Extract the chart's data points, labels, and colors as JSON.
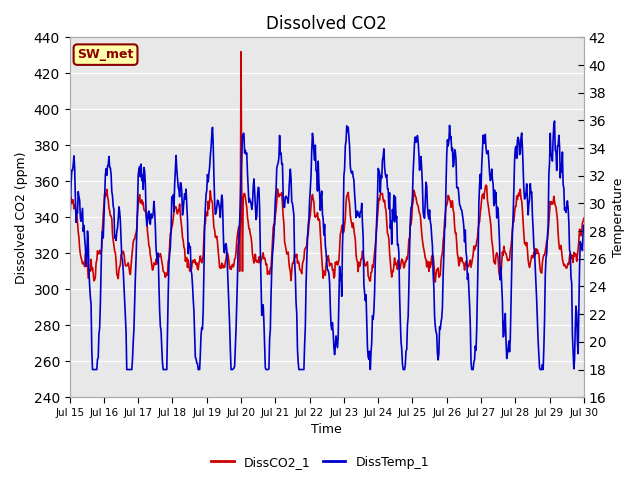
{
  "title": "Dissolved CO2",
  "xlabel": "Time",
  "ylabel_left": "Dissolved CO2 (ppm)",
  "ylabel_right": "Temperature",
  "ylim_left": [
    240,
    440
  ],
  "ylim_right": [
    16,
    42
  ],
  "yticks_left": [
    240,
    260,
    280,
    300,
    320,
    340,
    360,
    380,
    400,
    420,
    440
  ],
  "yticks_right": [
    16,
    18,
    20,
    22,
    24,
    26,
    28,
    30,
    32,
    34,
    36,
    38,
    40,
    42
  ],
  "xtick_labels": [
    "Jul 15",
    "Jul 16",
    "Jul 17",
    "Jul 18",
    "Jul 19",
    "Jul 20",
    "Jul 21",
    "Jul 22",
    "Jul 23",
    "Jul 24",
    "Jul 25",
    "Jul 26",
    "Jul 27",
    "Jul 28",
    "Jul 29",
    "Jul 30"
  ],
  "annotation_text": "SW_met",
  "annotation_bg": "#ffffaa",
  "annotation_border": "#8b0000",
  "co2_color": "#cc0000",
  "temp_color": "#0000cc",
  "bg_color": "#e8e8e8",
  "fig_bg": "#ffffff",
  "legend1": "DissCO2_1",
  "legend2": "DissTemp_1",
  "grid_color": "#ffffff",
  "linewidth": 1.2
}
